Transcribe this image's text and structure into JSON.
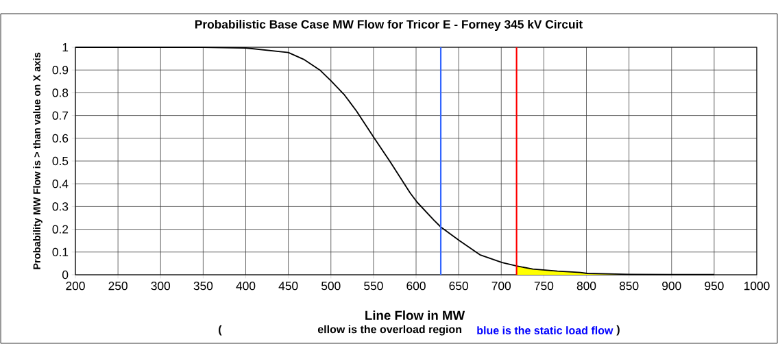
{
  "chart_data": {
    "type": "line",
    "title": "Probabilistic Base Case MW Flow for  Tricor E - Forney  345 kV Circuit",
    "xlabel": "Line Flow in MW",
    "ylabel": "Probability MW Flow is > than value on X axis",
    "xlim": [
      200,
      1000
    ],
    "xticks": [
      200,
      250,
      300,
      350,
      400,
      450,
      500,
      550,
      600,
      650,
      700,
      750,
      800,
      850,
      900,
      950,
      1000
    ],
    "ylim": [
      0,
      1
    ],
    "yticks": [
      0,
      0.1,
      0.2,
      0.3,
      0.4,
      0.5,
      0.6,
      0.7,
      0.8,
      0.9,
      1
    ],
    "grid": true,
    "series": [
      {
        "type": "area",
        "color": "#ffff00",
        "x": [
          718,
          737,
          766,
          793,
          801,
          850
        ],
        "values": [
          0.039,
          0.025,
          0.016,
          0.01,
          0.006,
          0.002
        ]
      },
      {
        "color": "#000000",
        "x": [
          200,
          250,
          300,
          350,
          400,
          450,
          468,
          487,
          500,
          516,
          530,
          551,
          569,
          593,
          601,
          621,
          629,
          651,
          675,
          701,
          718,
          737,
          766,
          793,
          801,
          850,
          900,
          950
        ],
        "values": [
          1,
          1,
          1,
          1,
          0.997,
          0.977,
          0.947,
          0.9,
          0.853,
          0.79,
          0.72,
          0.6,
          0.5,
          0.36,
          0.32,
          0.24,
          0.21,
          0.15,
          0.088,
          0.054,
          0.039,
          0.025,
          0.016,
          0.01,
          0.006,
          0.002,
          0.001,
          0.001
        ]
      }
    ],
    "ref_lines": [
      {
        "axis": "x",
        "value": 629,
        "color": "#3366ff"
      },
      {
        "axis": "x",
        "value": 718,
        "color": "#ff0000"
      }
    ],
    "annotations": [
      "(",
      "ellow is the overload region",
      "blue is the static load flow",
      ")"
    ]
  }
}
